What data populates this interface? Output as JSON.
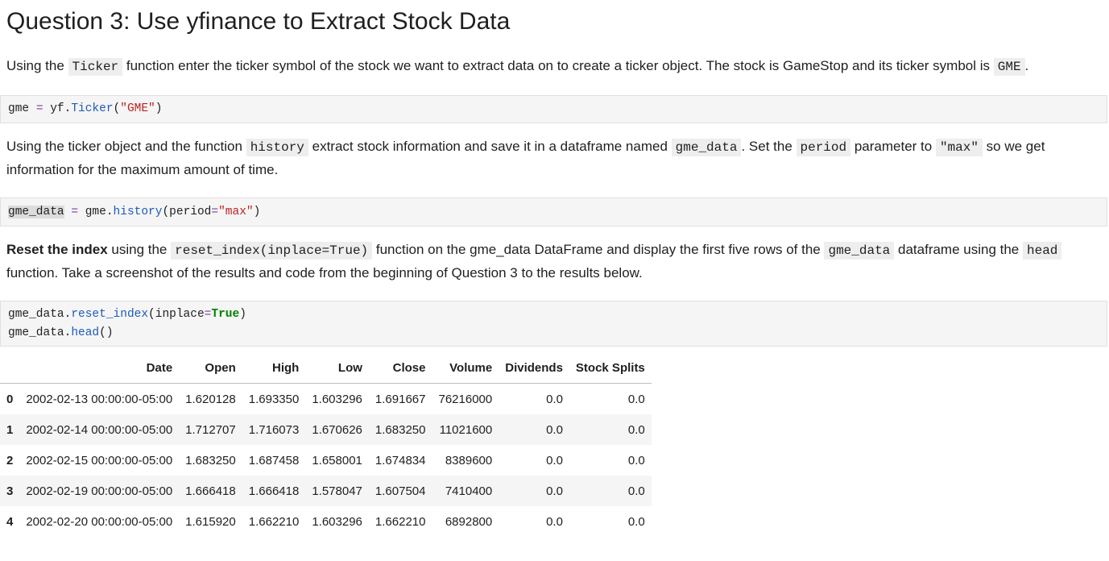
{
  "heading": "Question 3: Use yfinance to Extract Stock Data",
  "para1": {
    "t1": "Using the ",
    "code1": "Ticker",
    "t2": " function enter the ticker symbol of the stock we want to extract data on to create a ticker object. The stock is GameStop and its ticker symbol is ",
    "code2": "GME",
    "t3": "."
  },
  "code1": {
    "var": "gme",
    "op": "=",
    "obj": "yf.",
    "fn": "Ticker",
    "open": "(",
    "arg": "\"GME\"",
    "close": ")"
  },
  "para2": {
    "t1": "Using the ticker object and the function ",
    "code1": "history",
    "t2": " extract stock information and save it in a dataframe named ",
    "code2": "gme_data",
    "t3": ". Set the ",
    "code3": "period",
    "t4": " parameter to ",
    "code4": "\"max\"",
    "t5": " so we get information for the maximum amount of time."
  },
  "code2": {
    "var": "gme_data",
    "op": "=",
    "obj": "gme.",
    "fn": "history",
    "open": "(",
    "param": "period",
    "eq": "=",
    "arg": "\"max\"",
    "close": ")"
  },
  "para3": {
    "bold": "Reset the index",
    "t1": " using the ",
    "code1": "reset_index(inplace=True)",
    "t2": " function on the gme_data DataFrame and display the first five rows of the ",
    "code2": "gme_data",
    "t3": " dataframe using the ",
    "code3": "head",
    "t4": " function. Take a screenshot of the results and code from the beginning of Question 3 to the results below."
  },
  "code3": {
    "l1_obj": "gme_data.",
    "l1_fn": "reset_index",
    "l1_open": "(",
    "l1_param": "inplace",
    "l1_eq": "=",
    "l1_kw": "True",
    "l1_close": ")",
    "l2_obj": "gme_data.",
    "l2_fn": "head",
    "l2_call": "()"
  },
  "table": {
    "columns": [
      "",
      "Date",
      "Open",
      "High",
      "Low",
      "Close",
      "Volume",
      "Dividends",
      "Stock Splits"
    ],
    "rows": [
      [
        "0",
        "2002-02-13 00:00:00-05:00",
        "1.620128",
        "1.693350",
        "1.603296",
        "1.691667",
        "76216000",
        "0.0",
        "0.0"
      ],
      [
        "1",
        "2002-02-14 00:00:00-05:00",
        "1.712707",
        "1.716073",
        "1.670626",
        "1.683250",
        "11021600",
        "0.0",
        "0.0"
      ],
      [
        "2",
        "2002-02-15 00:00:00-05:00",
        "1.683250",
        "1.687458",
        "1.658001",
        "1.674834",
        "8389600",
        "0.0",
        "0.0"
      ],
      [
        "3",
        "2002-02-19 00:00:00-05:00",
        "1.666418",
        "1.666418",
        "1.578047",
        "1.607504",
        "7410400",
        "0.0",
        "0.0"
      ],
      [
        "4",
        "2002-02-20 00:00:00-05:00",
        "1.615920",
        "1.662210",
        "1.603296",
        "1.662210",
        "6892800",
        "0.0",
        "0.0"
      ]
    ]
  }
}
